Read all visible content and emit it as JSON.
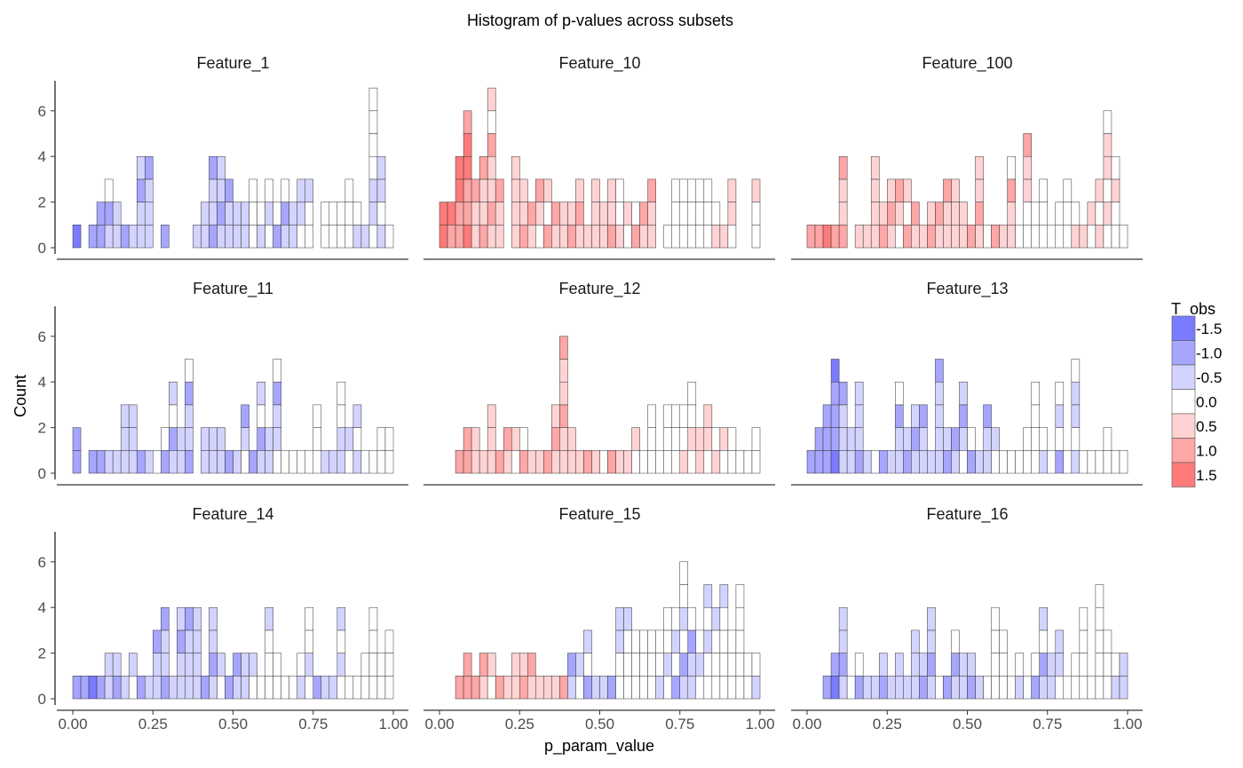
{
  "chart_data": {
    "type": "histogram",
    "title": "Histogram of p-values across subsets",
    "xlabel": "p_param_value",
    "ylabel": "Count",
    "xlim": [
      0,
      1
    ],
    "ylim": [
      0,
      7
    ],
    "x_ticks": [
      "0.00",
      "0.25",
      "0.50",
      "0.75",
      "1.00"
    ],
    "y_ticks": [
      "0",
      "2",
      "4",
      "6"
    ],
    "bins": 40,
    "legend": {
      "title": "T_obs",
      "labels": [
        "-1.5",
        "-1.0",
        "-0.5",
        "0.0",
        "0.5",
        "1.0",
        "1.5"
      ],
      "colors": [
        "#7b7bff",
        "#a6a6ff",
        "#d3d3ff",
        "#ffffff",
        "#ffd3d3",
        "#ffa6a6",
        "#ff7b7b"
      ]
    },
    "panels": [
      {
        "name": "Feature_1",
        "counts": [
          1,
          0,
          1,
          2,
          3,
          2,
          1,
          1,
          4,
          4,
          0,
          1,
          0,
          0,
          0,
          1,
          2,
          4,
          4,
          3,
          2,
          2,
          3,
          2,
          3,
          2,
          3,
          2,
          3,
          3,
          0,
          2,
          2,
          2,
          3,
          2,
          1,
          7,
          4,
          1
        ]
      },
      {
        "name": "Feature_10",
        "counts": [
          2,
          2,
          4,
          6,
          3,
          4,
          7,
          3,
          0,
          4,
          3,
          2,
          3,
          3,
          2,
          2,
          2,
          3,
          1,
          3,
          2,
          3,
          3,
          2,
          2,
          2,
          3,
          0,
          1,
          3,
          3,
          3,
          3,
          3,
          2,
          1,
          3,
          0,
          0,
          3
        ]
      },
      {
        "name": "Feature_100",
        "counts": [
          1,
          1,
          1,
          1,
          4,
          0,
          1,
          1,
          4,
          2,
          3,
          3,
          3,
          2,
          1,
          2,
          2,
          3,
          3,
          2,
          1,
          4,
          1,
          1,
          1,
          4,
          1,
          5,
          2,
          3,
          1,
          2,
          3,
          2,
          1,
          2,
          3,
          6,
          4,
          1
        ]
      },
      {
        "name": "Feature_11",
        "counts": [
          2,
          0,
          1,
          1,
          1,
          1,
          3,
          3,
          1,
          1,
          1,
          2,
          4,
          2,
          5,
          0,
          2,
          2,
          2,
          1,
          1,
          3,
          1,
          4,
          2,
          5,
          1,
          1,
          1,
          1,
          3,
          1,
          1,
          4,
          2,
          3,
          1,
          1,
          2,
          2
        ]
      },
      {
        "name": "Feature_12",
        "counts": [
          0,
          0,
          1,
          2,
          2,
          1,
          3,
          1,
          2,
          2,
          2,
          1,
          1,
          1,
          3,
          6,
          2,
          1,
          1,
          1,
          1,
          1,
          1,
          1,
          2,
          1,
          3,
          1,
          3,
          3,
          3,
          4,
          2,
          3,
          2,
          2,
          2,
          1,
          1,
          2
        ]
      },
      {
        "name": "Feature_13",
        "counts": [
          1,
          2,
          3,
          5,
          4,
          2,
          4,
          1,
          1,
          1,
          1,
          4,
          2,
          3,
          3,
          1,
          5,
          2,
          2,
          4,
          2,
          1,
          3,
          2,
          1,
          1,
          1,
          2,
          4,
          2,
          1,
          4,
          1,
          5,
          1,
          1,
          1,
          2,
          1,
          1
        ]
      },
      {
        "name": "Feature_14",
        "counts": [
          1,
          1,
          1,
          1,
          2,
          2,
          1,
          2,
          1,
          1,
          3,
          4,
          1,
          4,
          4,
          4,
          1,
          4,
          2,
          1,
          2,
          2,
          2,
          1,
          4,
          2,
          1,
          1,
          2,
          4,
          1,
          1,
          1,
          4,
          1,
          1,
          2,
          4,
          2,
          3
        ]
      },
      {
        "name": "Feature_15",
        "counts": [
          0,
          0,
          1,
          2,
          1,
          2,
          2,
          1,
          1,
          2,
          2,
          2,
          1,
          1,
          1,
          1,
          2,
          2,
          3,
          1,
          1,
          1,
          4,
          4,
          3,
          3,
          3,
          3,
          4,
          4,
          6,
          4,
          3,
          5,
          4,
          5,
          3,
          5,
          2,
          2
        ]
      },
      {
        "name": "Feature_16",
        "counts": [
          0,
          0,
          1,
          2,
          4,
          1,
          2,
          1,
          1,
          2,
          1,
          2,
          1,
          3,
          2,
          4,
          1,
          1,
          3,
          2,
          2,
          1,
          1,
          4,
          3,
          1,
          2,
          1,
          2,
          4,
          2,
          3,
          1,
          2,
          4,
          1,
          5,
          3,
          2,
          2
        ]
      }
    ]
  }
}
